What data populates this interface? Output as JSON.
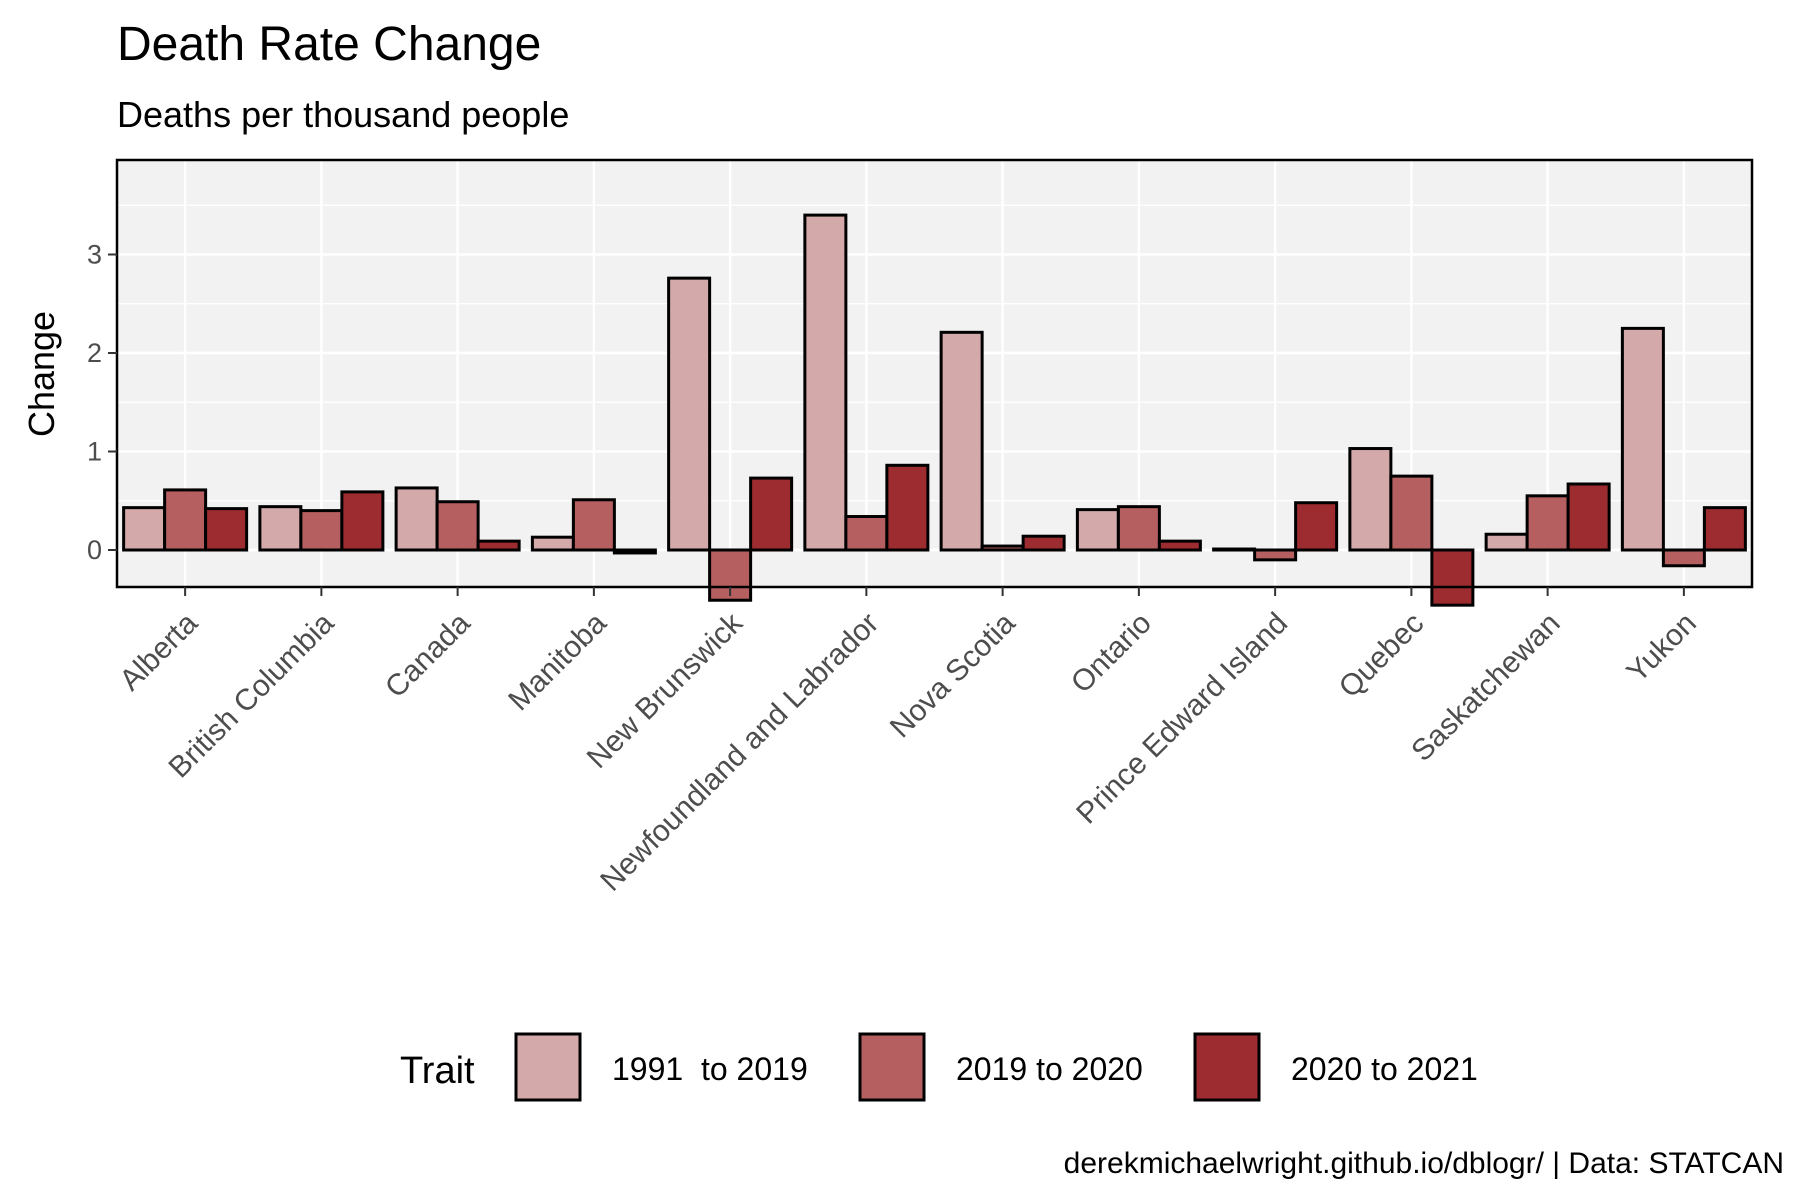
{
  "chart_data": {
    "type": "bar",
    "title": "Death Rate Change",
    "subtitle": "Deaths per thousand people",
    "ylabel": "Change",
    "xlabel": "",
    "ylim": [
      -0.75,
      3.6
    ],
    "yticks": [
      0,
      1,
      2,
      3
    ],
    "grid": true,
    "legend_title": "Trait",
    "legend_position": "bottom",
    "caption": "derekmichaelwright.github.io/dblogr/ | Data: STATCAN",
    "categories": [
      "Alberta",
      "British Columbia",
      "Canada",
      "Manitoba",
      "New Brunswick",
      "Newfoundland and Labrador",
      "Nova Scotia",
      "Ontario",
      "Prince Edward Island",
      "Quebec",
      "Saskatchewan",
      "Yukon"
    ],
    "series": [
      {
        "name": "1991  to 2019",
        "color": "#d4a9aa",
        "values": [
          0.43,
          0.44,
          0.63,
          0.13,
          2.76,
          3.4,
          2.21,
          0.41,
          0.01,
          1.03,
          0.16,
          2.25
        ]
      },
      {
        "name": "2019 to 2020",
        "color": "#b65f61",
        "values": [
          0.61,
          0.4,
          0.49,
          0.51,
          -0.51,
          0.34,
          0.04,
          0.44,
          -0.1,
          0.75,
          0.55,
          -0.16
        ]
      },
      {
        "name": "2020 to 2021",
        "color": "#9c2c2f",
        "values": [
          0.42,
          0.59,
          0.09,
          -0.03,
          0.73,
          0.86,
          0.14,
          0.09,
          0.48,
          -0.56,
          0.67,
          0.43
        ]
      }
    ]
  }
}
